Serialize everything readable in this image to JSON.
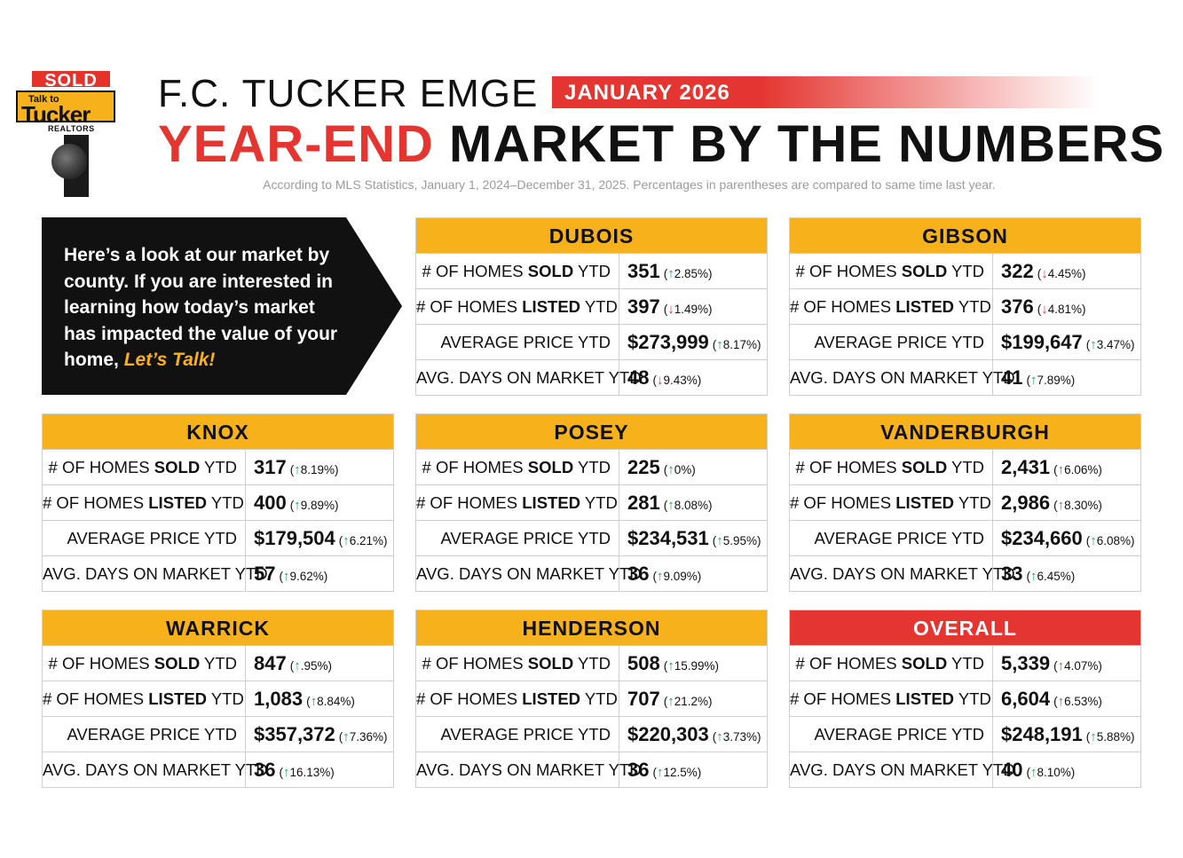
{
  "logo": {
    "sold": "SOLD",
    "talk_to": "Talk to",
    "tucker": "Tucker",
    "realtors": "REALTORS"
  },
  "header": {
    "brand": "F.C. TUCKER EMGE",
    "month": "JANUARY 2026",
    "headline_red": "YEAR-END",
    "headline_black": "MARKET BY THE NUMBERS",
    "subtitle": "According to MLS Statistics, January 1, 2024–December 31, 2025. Percentages in parentheses are compared to same time last year."
  },
  "intro": {
    "text": "Here’s a look at our market by county. If you are interested in learning how today’s market has impacted the value of your home,",
    "cta": "Let’s Talk!"
  },
  "labels": {
    "sold_pre": "# OF HOMES ",
    "sold_bold": "SOLD",
    "sold_post": " YTD",
    "listed_pre": "# OF HOMES ",
    "listed_bold": "LISTED",
    "listed_post": " YTD",
    "price": "AVERAGE PRICE YTD",
    "days": "AVG. DAYS ON MARKET YTD"
  },
  "colors": {
    "accent_yellow": "#f7b21b",
    "accent_red": "#e53530",
    "up_green": "#22a44a",
    "down_red": "#e53530"
  },
  "counties": [
    {
      "name": "DUBOIS",
      "sold": {
        "value": "351",
        "dir": "up",
        "pct": "2.85%"
      },
      "listed": {
        "value": "397",
        "dir": "down",
        "pct": "1.49%"
      },
      "price": {
        "value": "$273,999",
        "dir": "up",
        "pct": "8.17%"
      },
      "days": {
        "value": "48",
        "dir": "down",
        "pct": "9.43%"
      }
    },
    {
      "name": "GIBSON",
      "sold": {
        "value": "322",
        "dir": "down",
        "pct": "4.45%"
      },
      "listed": {
        "value": "376",
        "dir": "down",
        "pct": "4.81%"
      },
      "price": {
        "value": "$199,647",
        "dir": "up",
        "pct": "3.47%"
      },
      "days": {
        "value": "41",
        "dir": "up",
        "pct": "7.89%"
      }
    },
    {
      "name": "KNOX",
      "sold": {
        "value": "317",
        "dir": "up",
        "pct": "8.19%"
      },
      "listed": {
        "value": "400",
        "dir": "up",
        "pct": "9.89%"
      },
      "price": {
        "value": "$179,504",
        "dir": "up",
        "pct": "6.21%"
      },
      "days": {
        "value": "57",
        "dir": "up",
        "pct": "9.62%"
      }
    },
    {
      "name": "POSEY",
      "sold": {
        "value": "225",
        "dir": "up",
        "pct": "0%"
      },
      "listed": {
        "value": "281",
        "dir": "up",
        "pct": "8.08%"
      },
      "price": {
        "value": "$234,531",
        "dir": "up",
        "pct": "5.95%"
      },
      "days": {
        "value": "36",
        "dir": "up",
        "pct": "9.09%"
      }
    },
    {
      "name": "VANDERBURGH",
      "sold": {
        "value": "2,431",
        "dir": "up",
        "pct": "6.06%"
      },
      "listed": {
        "value": "2,986",
        "dir": "up",
        "pct": "8.30%"
      },
      "price": {
        "value": "$234,660",
        "dir": "up",
        "pct": "6.08%"
      },
      "days": {
        "value": "33",
        "dir": "up",
        "pct": "6.45%"
      }
    },
    {
      "name": "WARRICK",
      "sold": {
        "value": "847",
        "dir": "up",
        "pct": ".95%"
      },
      "listed": {
        "value": "1,083",
        "dir": "up",
        "pct": "8.84%"
      },
      "price": {
        "value": "$357,372",
        "dir": "up",
        "pct": "7.36%"
      },
      "days": {
        "value": "36",
        "dir": "up",
        "pct": "16.13%"
      }
    },
    {
      "name": "HENDERSON",
      "sold": {
        "value": "508",
        "dir": "up",
        "pct": "15.99%"
      },
      "listed": {
        "value": "707",
        "dir": "up",
        "pct": "21.2%"
      },
      "price": {
        "value": "$220,303",
        "dir": "up",
        "pct": "3.73%"
      },
      "days": {
        "value": "36",
        "dir": "up",
        "pct": "12.5%"
      }
    },
    {
      "name": "OVERALL",
      "sold": {
        "value": "5,339",
        "dir": "up",
        "pct": "4.07%"
      },
      "listed": {
        "value": "6,604",
        "dir": "up",
        "pct": "6.53%"
      },
      "price": {
        "value": "$248,191",
        "dir": "up",
        "pct": "5.88%"
      },
      "days": {
        "value": "40",
        "dir": "up",
        "pct": "8.10%"
      }
    }
  ]
}
